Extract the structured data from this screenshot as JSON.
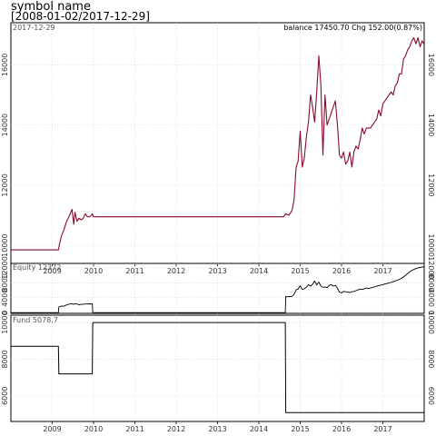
{
  "chart_title": "symbol name",
  "chart_subtitle": "[2008-01-02/2017-12-29]",
  "theme": {
    "background": "#ffffff",
    "grid": "#cccccc",
    "price_line": "#8b0a2a",
    "line": "#000000"
  },
  "chart_data": [
    {
      "type": "line",
      "panel": "price",
      "corner_label": "2017-12-29",
      "header_text": "balance 17450.70  Chg 152.00(0.87%)",
      "xlim": [
        2008.0,
        2018.0
      ],
      "x_ticks": [
        2009,
        2010,
        2011,
        2012,
        2013,
        2014,
        2015,
        2016,
        2017
      ],
      "ylim": [
        9400,
        17400
      ],
      "y_ticks": [
        10000,
        12000,
        14000,
        16000
      ],
      "series": [
        {
          "x": [
            2008.0,
            2009.15,
            2009.17,
            2009.22,
            2009.28,
            2009.35,
            2009.42,
            2009.48,
            2009.52,
            2009.55,
            2009.6,
            2009.65,
            2009.7,
            2009.75,
            2009.8,
            2009.85,
            2009.9,
            2009.95,
            2009.97,
            2010.0,
            2011.0,
            2012.0,
            2013.0,
            2014.0,
            2014.6,
            2014.65,
            2014.72,
            2014.75,
            2014.8,
            2014.85,
            2014.9,
            2014.95,
            2015.0,
            2015.05,
            2015.1,
            2015.15,
            2015.2,
            2015.25,
            2015.3,
            2015.35,
            2015.4,
            2015.45,
            2015.5,
            2015.55,
            2015.6,
            2015.65,
            2015.7,
            2015.75,
            2015.8,
            2015.85,
            2015.9,
            2015.95,
            2016.0,
            2016.05,
            2016.1,
            2016.15,
            2016.2,
            2016.25,
            2016.3,
            2016.35,
            2016.4,
            2016.45,
            2016.5,
            2016.55,
            2016.6,
            2016.65,
            2016.7,
            2016.75,
            2016.8,
            2016.85,
            2016.9,
            2016.95,
            2017.0,
            2017.05,
            2017.1,
            2017.15,
            2017.2,
            2017.25,
            2017.3,
            2017.35,
            2017.4,
            2017.45,
            2017.5,
            2017.55,
            2017.6,
            2017.65,
            2017.7,
            2017.75,
            2017.8,
            2017.85,
            2017.9,
            2017.95,
            2017.99
          ],
          "values": [
            9850,
            9850,
            10000,
            10300,
            10500,
            10800,
            11000,
            11200,
            10700,
            11100,
            10800,
            10900,
            10850,
            10900,
            11050,
            10950,
            10950,
            11000,
            11050,
            10950,
            10950,
            10950,
            10950,
            10950,
            10950,
            11050,
            11000,
            11050,
            11150,
            11500,
            12600,
            12800,
            13800,
            12600,
            12900,
            13600,
            14100,
            15000,
            14600,
            14100,
            15100,
            16300,
            15300,
            13000,
            15000,
            14000,
            14200,
            14400,
            14600,
            14800,
            14000,
            13000,
            12900,
            13100,
            12700,
            12800,
            13100,
            12600,
            13100,
            13300,
            13200,
            13500,
            13900,
            13700,
            13900,
            13900,
            13900,
            14000,
            14100,
            14200,
            14500,
            14300,
            14700,
            14800,
            14900,
            15000,
            15100,
            15000,
            15300,
            15400,
            15700,
            15700,
            16200,
            16300,
            16500,
            16600,
            16800,
            16900,
            16700,
            16900,
            16600,
            16800,
            16700
          ]
        }
      ]
    },
    {
      "type": "line",
      "panel": "equity",
      "label": "Equity 12372",
      "xlim": [
        2008.0,
        2018.0
      ],
      "ylim": [
        -200,
        13200
      ],
      "y_ticks": [
        0,
        4000,
        8000,
        12000
      ],
      "series": [
        {
          "x": [
            2008.0,
            2009.15,
            2009.16,
            2009.2,
            2009.25,
            2009.3,
            2009.35,
            2009.42,
            2009.48,
            2009.52,
            2009.56,
            2009.6,
            2009.65,
            2009.7,
            2009.75,
            2009.8,
            2009.85,
            2009.9,
            2009.95,
            2009.97,
            2009.98,
            2010.0,
            2014.64,
            2014.65,
            2014.7,
            2014.75,
            2014.8,
            2014.85,
            2014.9,
            2014.95,
            2015.0,
            2015.05,
            2015.1,
            2015.15,
            2015.2,
            2015.25,
            2015.3,
            2015.35,
            2015.4,
            2015.45,
            2015.5,
            2015.55,
            2015.6,
            2015.65,
            2015.7,
            2015.75,
            2015.8,
            2015.85,
            2015.9,
            2015.95,
            2016.0,
            2016.05,
            2016.1,
            2016.15,
            2016.2,
            2016.25,
            2016.3,
            2016.35,
            2016.4,
            2016.45,
            2016.5,
            2016.55,
            2016.6,
            2016.65,
            2016.7,
            2016.75,
            2016.8,
            2016.85,
            2016.9,
            2016.95,
            2017.0,
            2017.05,
            2017.1,
            2017.15,
            2017.2,
            2017.25,
            2017.3,
            2017.35,
            2017.4,
            2017.45,
            2017.5,
            2017.55,
            2017.6,
            2017.65,
            2017.7,
            2017.75,
            2017.8,
            2017.85,
            2017.9,
            2017.95,
            2017.99
          ],
          "values": [
            0,
            0,
            1500,
            1700,
            1750,
            1800,
            2100,
            2300,
            2400,
            2200,
            2400,
            2300,
            2100,
            2200,
            2250,
            2300,
            2300,
            2350,
            2300,
            2350,
            0,
            0,
            0,
            4300,
            4250,
            4300,
            4350,
            4900,
            6100,
            6300,
            7200,
            6200,
            6400,
            6800,
            7500,
            7100,
            7600,
            8500,
            7400,
            8200,
            7100,
            6800,
            6900,
            6700,
            7300,
            7500,
            7100,
            7300,
            6500,
            5500,
            5300,
            5700,
            5600,
            5500,
            5400,
            5600,
            5700,
            5900,
            6100,
            6300,
            6200,
            6400,
            6600,
            6500,
            6600,
            6800,
            6900,
            7100,
            7200,
            7400,
            7500,
            7700,
            7800,
            8000,
            8100,
            8300,
            8500,
            8700,
            8900,
            9200,
            9600,
            10000,
            10500,
            10900,
            11300,
            11600,
            11800,
            12000,
            12100,
            12200,
            12372
          ]
        }
      ]
    },
    {
      "type": "line",
      "panel": "fund",
      "label": "Fund 5078.7",
      "xlim": [
        2008.0,
        2018.0
      ],
      "ylim": [
        4600,
        10400
      ],
      "y_ticks": [
        6000,
        8000,
        10000
      ],
      "series": [
        {
          "x": [
            2008.0,
            2009.15,
            2009.16,
            2009.97,
            2009.98,
            2014.64,
            2014.65,
            2018.0
          ],
          "values": [
            8700,
            8700,
            7200,
            7200,
            10000,
            10000,
            5078.7,
            5078.7
          ]
        }
      ]
    }
  ]
}
